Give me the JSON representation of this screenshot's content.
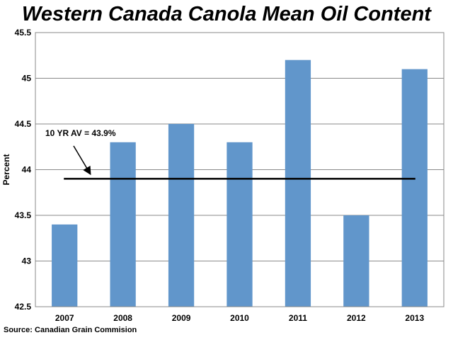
{
  "chart_data": {
    "type": "bar",
    "title": "Western Canada Canola Mean Oil Content",
    "ylabel": "Percent",
    "xlabel": "",
    "categories": [
      "2007",
      "2008",
      "2009",
      "2010",
      "2011",
      "2012",
      "2013"
    ],
    "values": [
      43.4,
      44.3,
      44.5,
      44.3,
      45.2,
      43.5,
      45.1
    ],
    "ylim": [
      42.5,
      45.5
    ],
    "yticks": [
      "42.5",
      "43",
      "43.5",
      "44",
      "44.5",
      "45",
      "45.5"
    ],
    "grid": true,
    "legend": "none",
    "bar_color": "#6196CB",
    "reference_line": {
      "value": 43.9,
      "label": "10 YR AV = 43.9%",
      "color": "#000000"
    },
    "source": "Source: Canadian Grain Commision"
  }
}
